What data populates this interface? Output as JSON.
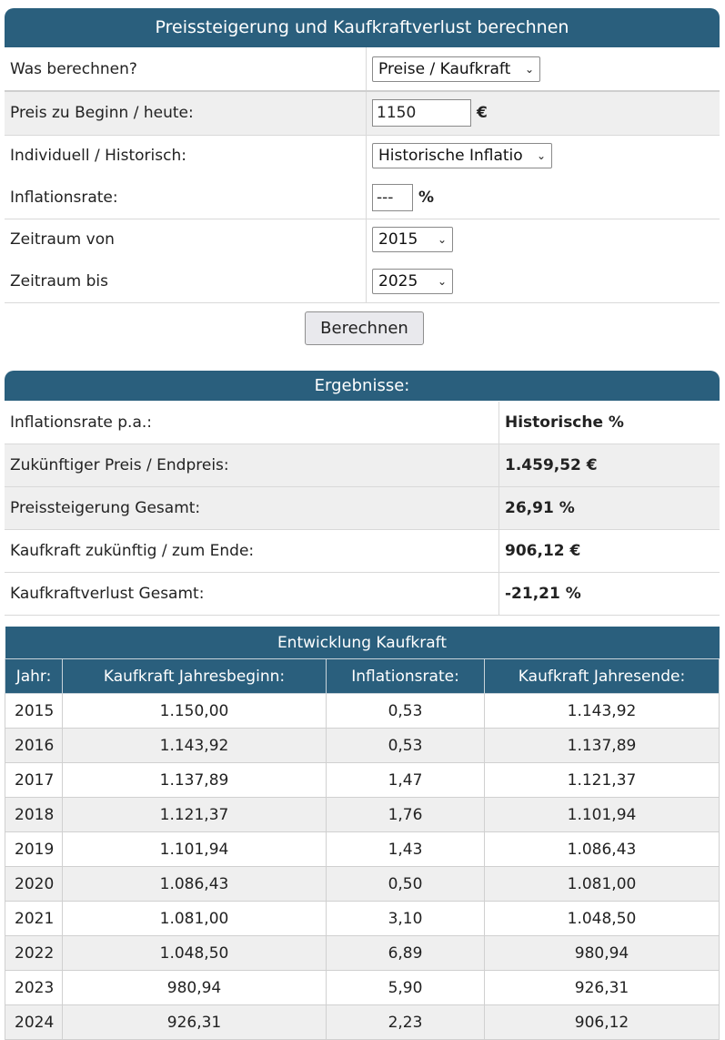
{
  "calculator": {
    "title": "Preissteigerung und Kaufkraftverlust berechnen",
    "rows": {
      "mode": {
        "label": "Was berechnen?",
        "value": "Preise / Kaufkraft"
      },
      "price": {
        "label": "Preis zu Beginn / heute:",
        "value": "1150",
        "unit": "€"
      },
      "type": {
        "label": "Individuell / Historisch:",
        "value": "Historische Inflatio"
      },
      "rate": {
        "label": "Inflationsrate:",
        "value": "---",
        "unit": "%"
      },
      "from": {
        "label": "Zeitraum von",
        "value": "2015"
      },
      "to": {
        "label": "Zeitraum bis",
        "value": "2025"
      }
    },
    "submit_label": "Berechnen"
  },
  "results": {
    "title": "Ergebnisse:",
    "rows": [
      {
        "label": "Inflationsrate p.a.:",
        "value": "Historische %"
      },
      {
        "label": "Zukünftiger Preis / Endpreis:",
        "value": "1.459,52 €"
      },
      {
        "label": "Preissteigerung Gesamt:",
        "value": "26,91 %"
      },
      {
        "label": "Kaufkraft zukünftig / zum Ende:",
        "value": "906,12 €"
      },
      {
        "label": "Kaufkraftverlust Gesamt:",
        "value": "-21,21 %"
      }
    ]
  },
  "development": {
    "title": "Entwicklung Kaufkraft",
    "headers": [
      "Jahr:",
      "Kaufkraft Jahresbeginn:",
      "Inflationsrate:",
      "Kaufkraft Jahresende:"
    ],
    "rows": [
      [
        "2015",
        "1.150,00",
        "0,53",
        "1.143,92"
      ],
      [
        "2016",
        "1.143,92",
        "0,53",
        "1.137,89"
      ],
      [
        "2017",
        "1.137,89",
        "1,47",
        "1.121,37"
      ],
      [
        "2018",
        "1.121,37",
        "1,76",
        "1.101,94"
      ],
      [
        "2019",
        "1.101,94",
        "1,43",
        "1.086,43"
      ],
      [
        "2020",
        "1.086,43",
        "0,50",
        "1.081,00"
      ],
      [
        "2021",
        "1.081,00",
        "3,10",
        "1.048,50"
      ],
      [
        "2022",
        "1.048,50",
        "6,89",
        "980,94"
      ],
      [
        "2023",
        "980,94",
        "5,90",
        "926,31"
      ],
      [
        "2024",
        "926,31",
        "2,23",
        "906,12"
      ]
    ]
  }
}
